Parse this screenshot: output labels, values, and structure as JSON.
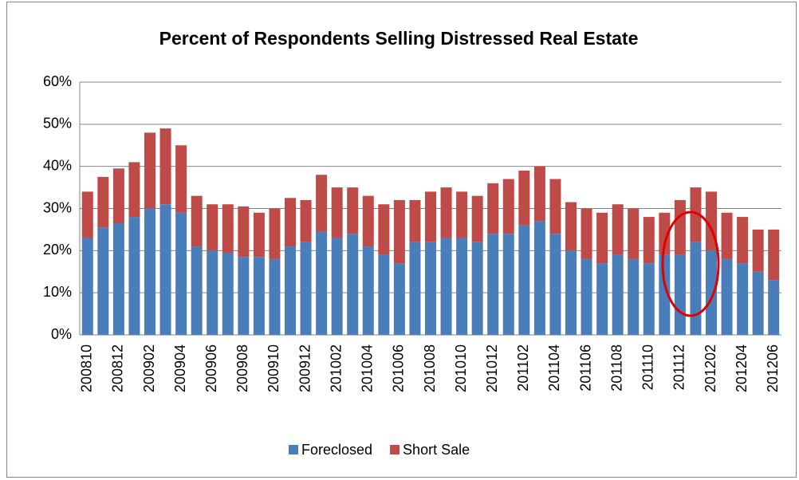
{
  "chart_data": {
    "type": "stacked_bar",
    "title": "Percent of Respondents Selling Distressed Real Estate",
    "categories": [
      "200810",
      null,
      "200812",
      null,
      "200902",
      null,
      "200904",
      null,
      "200906",
      null,
      "200908",
      null,
      "200910",
      null,
      "200912",
      null,
      "201002",
      null,
      "201004",
      null,
      "201006",
      null,
      "201008",
      null,
      "201010",
      null,
      "201012",
      null,
      "201102",
      null,
      "201104",
      null,
      "201106",
      null,
      "201108",
      null,
      "201110",
      null,
      "201112",
      null,
      "201202",
      null,
      "201204",
      null,
      "201206"
    ],
    "series": [
      {
        "name": "Foreclosed",
        "color": "#4a7ebb",
        "values": [
          23,
          25.5,
          26.5,
          28,
          30,
          31,
          29,
          21,
          20,
          19.5,
          18.5,
          18.5,
          18,
          21,
          22,
          24.5,
          23,
          24,
          21,
          19,
          17,
          22,
          22,
          23,
          23,
          22,
          24,
          24,
          26,
          27,
          24,
          20,
          18,
          17,
          19,
          18,
          17,
          19,
          19,
          22,
          20,
          18,
          17,
          15,
          13
        ]
      },
      {
        "name": "Short Sale",
        "color": "#be4b48",
        "values": [
          11,
          12,
          13,
          13,
          18,
          18,
          16,
          12,
          11,
          11.5,
          12,
          10.5,
          12,
          11.5,
          10,
          13.5,
          12,
          11,
          12,
          12,
          15,
          10,
          12,
          12,
          11,
          11,
          12,
          13,
          13,
          13,
          13,
          11.5,
          12,
          12,
          12,
          12,
          11,
          10,
          13,
          13,
          14,
          11,
          11,
          10,
          12
        ]
      }
    ],
    "ylim": [
      0,
      60
    ],
    "yticks": [
      {
        "value": 0,
        "label": "0%"
      },
      {
        "value": 10,
        "label": "10%"
      },
      {
        "value": 20,
        "label": "20%"
      },
      {
        "value": 30,
        "label": "30%"
      },
      {
        "value": 40,
        "label": "40%"
      },
      {
        "value": 50,
        "label": "50%"
      },
      {
        "value": 60,
        "label": "60%"
      }
    ],
    "grid": true
  }
}
